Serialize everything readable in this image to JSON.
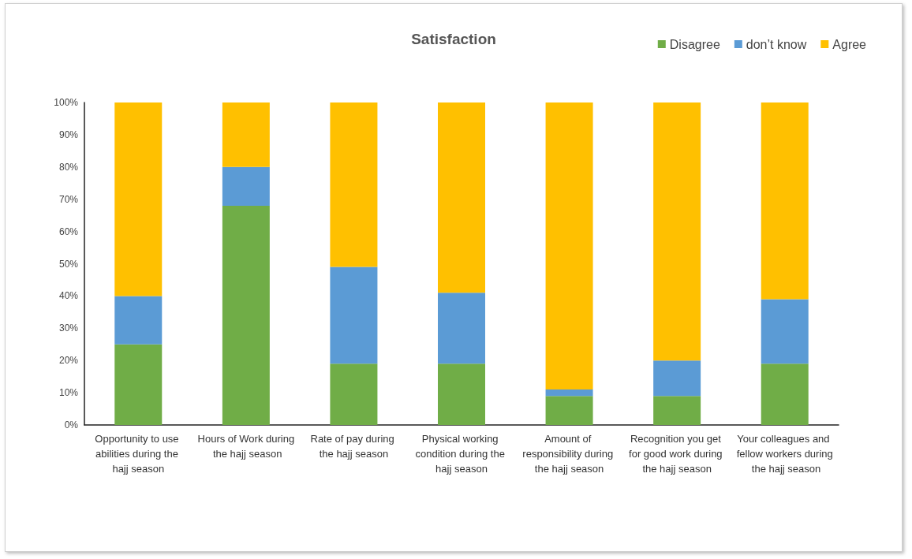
{
  "chart_data": {
    "type": "bar",
    "title": "Satisfaction",
    "stacked": true,
    "legend": "top right",
    "grid": false,
    "categories": [
      "Opportunity to use abilities during the hajj season",
      "Hours of Work during the hajj season",
      "Rate of pay during the hajj season",
      "Physical working condition during the hajj season",
      "Amount of responsibility during the hajj season",
      "Recognition you get for good work during the hajj season",
      "Your colleagues and fellow workers during the hajj season"
    ],
    "series": [
      {
        "name": "Disagree",
        "color": "#70ad47",
        "values": [
          25,
          68,
          19,
          19,
          9,
          9,
          19
        ]
      },
      {
        "name": "don’t know",
        "color": "#5b9bd5",
        "values": [
          15,
          12,
          30,
          22,
          2,
          11,
          20
        ]
      },
      {
        "name": "Agree",
        "color": "#ffc000",
        "values": [
          60,
          20,
          51,
          59,
          89,
          80,
          61
        ]
      }
    ],
    "ylim": [
      0,
      100
    ],
    "yticks": [
      {
        "value": 0,
        "label": "0%"
      },
      {
        "value": 10,
        "label": "10%"
      },
      {
        "value": 20,
        "label": "20%"
      },
      {
        "value": 30,
        "label": "30%"
      },
      {
        "value": 40,
        "label": "40%"
      },
      {
        "value": 50,
        "label": "50%"
      },
      {
        "value": 60,
        "label": "60%"
      },
      {
        "value": 70,
        "label": "70%"
      },
      {
        "value": 80,
        "label": "80%"
      },
      {
        "value": 90,
        "label": "90%"
      },
      {
        "value": 100,
        "label": "100%"
      }
    ]
  }
}
